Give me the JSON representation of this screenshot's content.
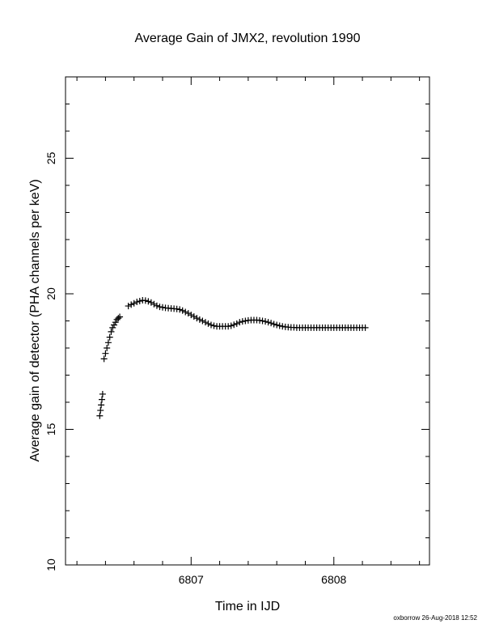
{
  "chart_data": {
    "type": "scatter",
    "title": "Average Gain of JMX2, revolution 1990",
    "xlabel": "Time in IJD",
    "ylabel": "Average gain of detector (PHA channels per keV)",
    "xlim": [
      6806.12,
      6808.67
    ],
    "ylim": [
      10,
      28
    ],
    "xticks": [
      6807,
      6808
    ],
    "xtick_labels": [
      "6807",
      "6808"
    ],
    "yticks": [
      10,
      15,
      20,
      25
    ],
    "ytick_labels": [
      "10",
      "15",
      "20",
      "25"
    ],
    "marker": "plus",
    "grid": false,
    "legend": "none",
    "series": [
      {
        "x": [
          6806.36,
          6806.365,
          6806.37,
          6806.375,
          6806.38,
          6806.39,
          6806.4,
          6806.41,
          6806.42,
          6806.43,
          6806.44,
          6806.45,
          6806.46,
          6806.47,
          6806.48,
          6806.49,
          6806.5,
          6806.56,
          6806.58,
          6806.6,
          6806.62,
          6806.64,
          6806.66,
          6806.68,
          6806.7,
          6806.72,
          6806.74,
          6806.76,
          6806.78,
          6806.8,
          6806.82,
          6806.84,
          6806.86,
          6806.88,
          6806.9,
          6806.92,
          6806.94,
          6806.96,
          6806.98,
          6807.0,
          6807.02,
          6807.04,
          6807.06,
          6807.08,
          6807.1,
          6807.12,
          6807.14,
          6807.16,
          6807.18,
          6807.2,
          6807.22,
          6807.24,
          6807.26,
          6807.28,
          6807.3,
          6807.32,
          6807.34,
          6807.36,
          6807.38,
          6807.4,
          6807.42,
          6807.44,
          6807.46,
          6807.48,
          6807.5,
          6807.52,
          6807.54,
          6807.56,
          6807.58,
          6807.6,
          6807.62,
          6807.64,
          6807.66,
          6807.68,
          6807.7,
          6807.72,
          6807.74,
          6807.76,
          6807.78,
          6807.8,
          6807.82,
          6807.84,
          6807.86,
          6807.88,
          6807.9,
          6807.92,
          6807.94,
          6807.96,
          6807.98,
          6808.0,
          6808.02,
          6808.04,
          6808.06,
          6808.08,
          6808.1,
          6808.12,
          6808.14,
          6808.16,
          6808.18,
          6808.2,
          6808.22
        ],
        "y": [
          15.5,
          15.7,
          15.9,
          16.1,
          16.3,
          17.6,
          17.8,
          18.0,
          18.2,
          18.4,
          18.6,
          18.75,
          18.85,
          18.95,
          19.05,
          19.1,
          19.15,
          19.55,
          19.6,
          19.65,
          19.7,
          19.73,
          19.76,
          19.75,
          19.72,
          19.68,
          19.62,
          19.56,
          19.52,
          19.5,
          19.48,
          19.47,
          19.46,
          19.45,
          19.44,
          19.42,
          19.38,
          19.33,
          19.28,
          19.22,
          19.16,
          19.1,
          19.05,
          19.0,
          18.95,
          18.9,
          18.85,
          18.82,
          18.8,
          18.8,
          18.8,
          18.8,
          18.8,
          18.82,
          18.86,
          18.9,
          18.95,
          18.98,
          19.0,
          19.02,
          19.03,
          19.03,
          19.03,
          19.02,
          19.0,
          18.98,
          18.95,
          18.92,
          18.88,
          18.85,
          18.82,
          18.8,
          18.78,
          18.77,
          18.76,
          18.76,
          18.75,
          18.75,
          18.75,
          18.75,
          18.75,
          18.75,
          18.75,
          18.75,
          18.75,
          18.75,
          18.75,
          18.75,
          18.75,
          18.75,
          18.75,
          18.75,
          18.75,
          18.75,
          18.75,
          18.75,
          18.75,
          18.75,
          18.75,
          18.75,
          18.75
        ]
      }
    ]
  },
  "footer": {
    "credit": "oxborrow 26-Aug-2018 12:52"
  }
}
